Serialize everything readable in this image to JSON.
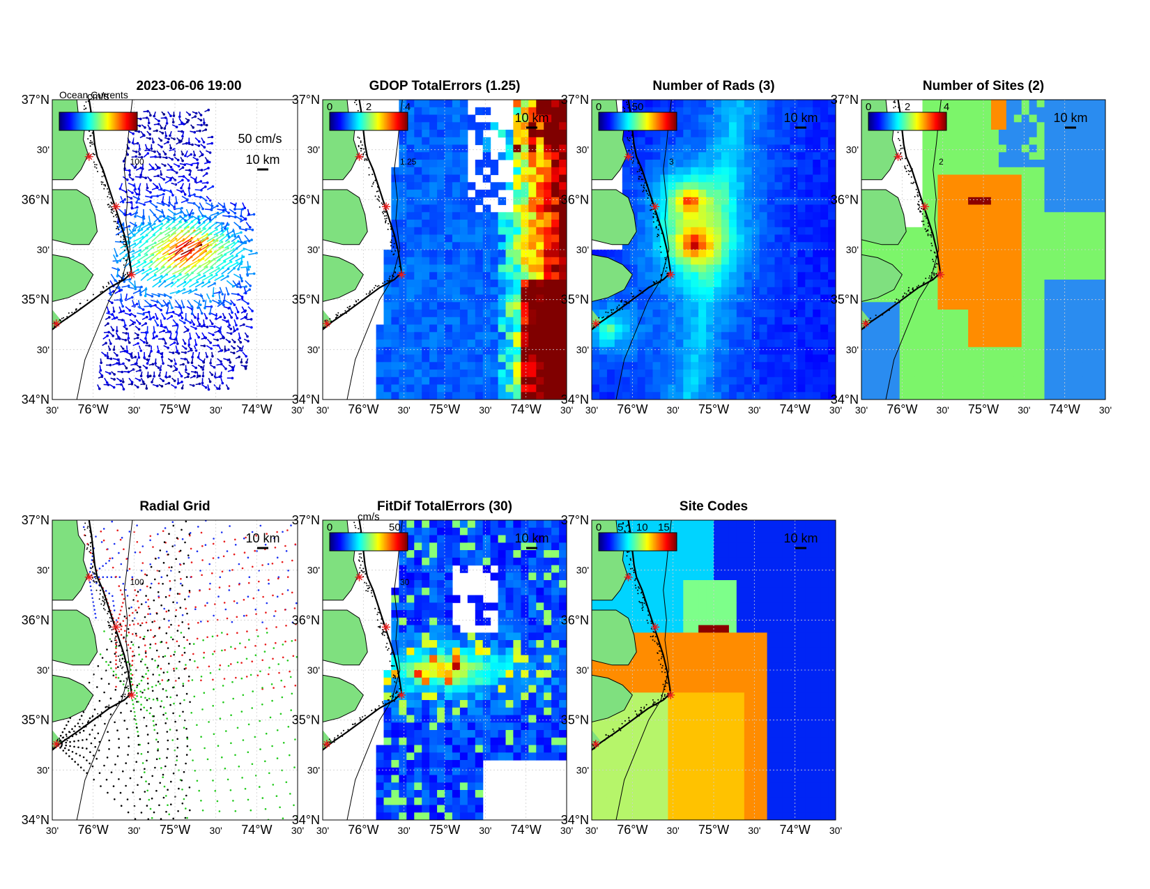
{
  "figure": {
    "panels": [
      {
        "id": "vectors",
        "title": "2023-06-06 19:00",
        "overlay_text": "Ocean Currents",
        "field": "vectors",
        "colorbar": {
          "unit": "cm/s",
          "ticks": [],
          "range": [
            0,
            100
          ]
        },
        "arrow_scale_label": "50 cm/s",
        "scale_label": "10 km",
        "contour_label": "100"
      },
      {
        "id": "gdop",
        "title": "GDOP TotalErrors (1.25)",
        "field": "gdop",
        "colorbar": {
          "unit": "",
          "ticks": [
            "0",
            "2",
            "4"
          ],
          "range": [
            0,
            4
          ]
        },
        "scale_label": "10 km",
        "contour_label": "1.25"
      },
      {
        "id": "nrads",
        "title": "Number of Rads (3)",
        "field": "nrads",
        "colorbar": {
          "unit": "",
          "ticks": [
            "0",
            "50"
          ],
          "range": [
            0,
            100
          ]
        },
        "scale_label": "10 km",
        "contour_label": "3"
      },
      {
        "id": "nsites",
        "title": "Number of Sites (2)",
        "field": "nsites",
        "colorbar": {
          "unit": "",
          "ticks": [
            "0",
            "2",
            "4"
          ],
          "range": [
            0,
            4
          ]
        },
        "scale_label": "10 km",
        "contour_label": "2"
      },
      {
        "id": "radgrid",
        "title": "Radial Grid",
        "field": "radgrid",
        "colorbar": null,
        "scale_label": "10 km",
        "contour_label": "100"
      },
      {
        "id": "fitdif",
        "title": "FitDif TotalErrors (30)",
        "field": "fitdif",
        "colorbar": {
          "unit": "cm/s",
          "ticks": [
            "0",
            "50"
          ],
          "range": [
            0,
            60
          ]
        },
        "scale_label": "10 km",
        "contour_label": "30"
      },
      {
        "id": "sitecodes",
        "title": "Site Codes",
        "field": "sitecodes",
        "colorbar": {
          "unit": "",
          "ticks": [
            "0",
            "5",
            "10",
            "15"
          ],
          "range": [
            0,
            18
          ]
        },
        "scale_label": "10 km",
        "contour_label": ""
      }
    ],
    "axes": {
      "lat_ticks": [
        {
          "value": 37.0,
          "label": "37°N"
        },
        {
          "value": 36.5,
          "label": "30'"
        },
        {
          "value": 36.0,
          "label": "36°N"
        },
        {
          "value": 35.5,
          "label": "30'"
        },
        {
          "value": 35.0,
          "label": "35°N"
        },
        {
          "value": 34.5,
          "label": "30'"
        },
        {
          "value": 34.0,
          "label": "34°N"
        }
      ],
      "lon_ticks": [
        {
          "value": -76.5,
          "label": "30'"
        },
        {
          "value": -76.0,
          "label": "76°W"
        },
        {
          "value": -75.5,
          "label": "30'"
        },
        {
          "value": -75.0,
          "label": "75°W"
        },
        {
          "value": -74.5,
          "label": "30'"
        },
        {
          "value": -74.0,
          "label": "74°W"
        },
        {
          "value": -73.5,
          "label": "30'"
        }
      ],
      "lon_range": [
        -76.5,
        -73.5
      ],
      "lat_range": [
        34.0,
        37.0
      ]
    },
    "sites": [
      {
        "lon": -76.05,
        "lat": 36.43
      },
      {
        "lon": -75.72,
        "lat": 35.93
      },
      {
        "lon": -75.53,
        "lat": 35.25
      },
      {
        "lon": -76.45,
        "lat": 34.76
      }
    ],
    "colors": {
      "land": "#7fe07f",
      "coast": "#000000",
      "site_marker": "#e81c1c",
      "radial_site_colors": [
        "#1a2ff0",
        "#e81c1c",
        "#22c91c",
        "#000000"
      ],
      "nsites_levels": [
        "#2a8cf0",
        "#7cf56a",
        "#ff8c00",
        "#8b0000"
      ],
      "sitecodes_regions": [
        "#0025f5",
        "#00d4ff",
        "#7dff8a",
        "#b6f56a",
        "#ffc200",
        "#ff8c00",
        "#8b0000"
      ],
      "jet": [
        "#00007f",
        "#0000ff",
        "#007fff",
        "#00ffff",
        "#7fff7f",
        "#ffff00",
        "#ff7f00",
        "#ff0000",
        "#7f0000"
      ]
    }
  }
}
